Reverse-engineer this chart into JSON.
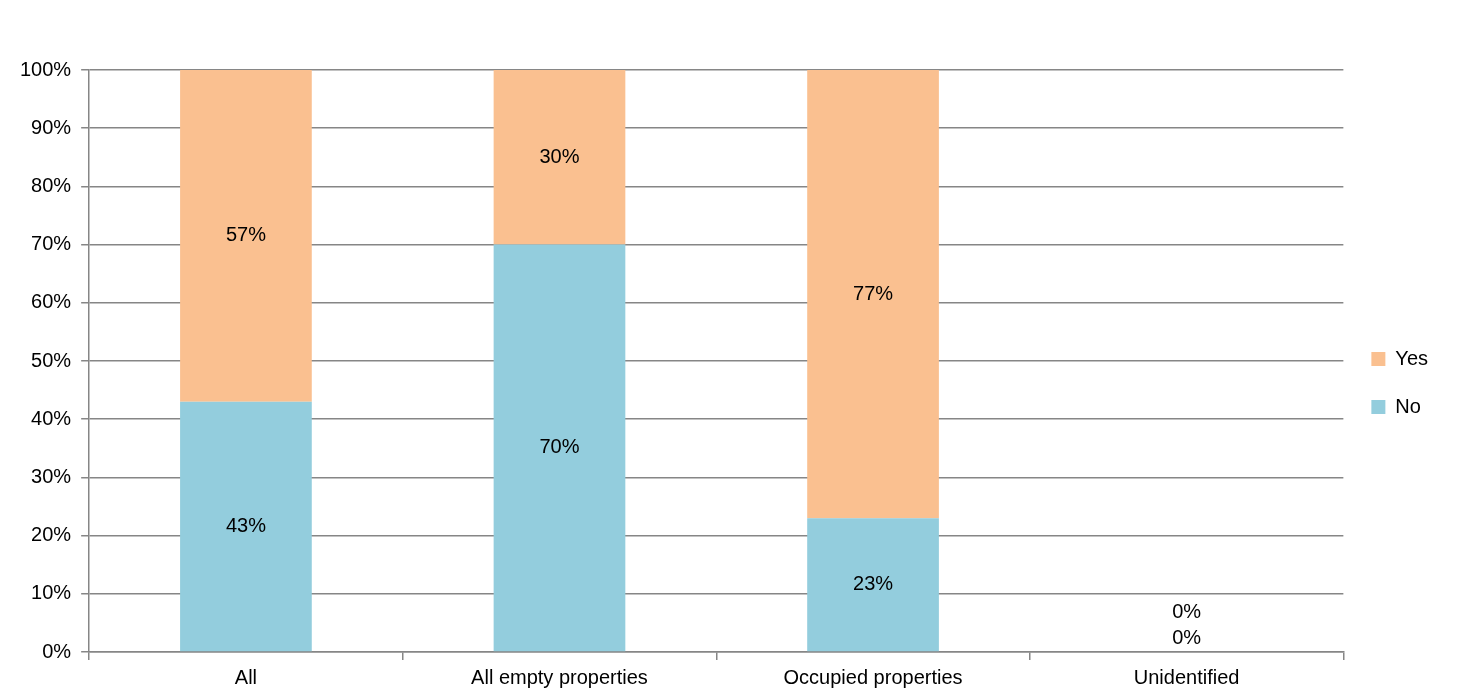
{
  "chart_data": {
    "type": "bar",
    "stacked": true,
    "categories": [
      "All",
      "All empty properties",
      "Occupied properties",
      "Unidentified"
    ],
    "series": [
      {
        "name": "No",
        "color": "#93cddd",
        "values": [
          43,
          70,
          23,
          0
        ],
        "value_labels": [
          "43%",
          "70%",
          "23%",
          "0%"
        ]
      },
      {
        "name": "Yes",
        "color": "#fac090",
        "values": [
          57,
          30,
          77,
          0
        ],
        "value_labels": [
          "57%",
          "30%",
          "77%",
          "0%"
        ]
      }
    ],
    "ylim": [
      0,
      100
    ],
    "yticks": [
      {
        "value": 0,
        "label": "0%"
      },
      {
        "value": 10,
        "label": "10%"
      },
      {
        "value": 20,
        "label": "20%"
      },
      {
        "value": 30,
        "label": "30%"
      },
      {
        "value": 40,
        "label": "40%"
      },
      {
        "value": 50,
        "label": "50%"
      },
      {
        "value": 60,
        "label": "60%"
      },
      {
        "value": 70,
        "label": "70%"
      },
      {
        "value": 80,
        "label": "80%"
      },
      {
        "value": 90,
        "label": "90%"
      },
      {
        "value": 100,
        "label": "100%"
      }
    ],
    "grid": "y",
    "legend": "right"
  }
}
